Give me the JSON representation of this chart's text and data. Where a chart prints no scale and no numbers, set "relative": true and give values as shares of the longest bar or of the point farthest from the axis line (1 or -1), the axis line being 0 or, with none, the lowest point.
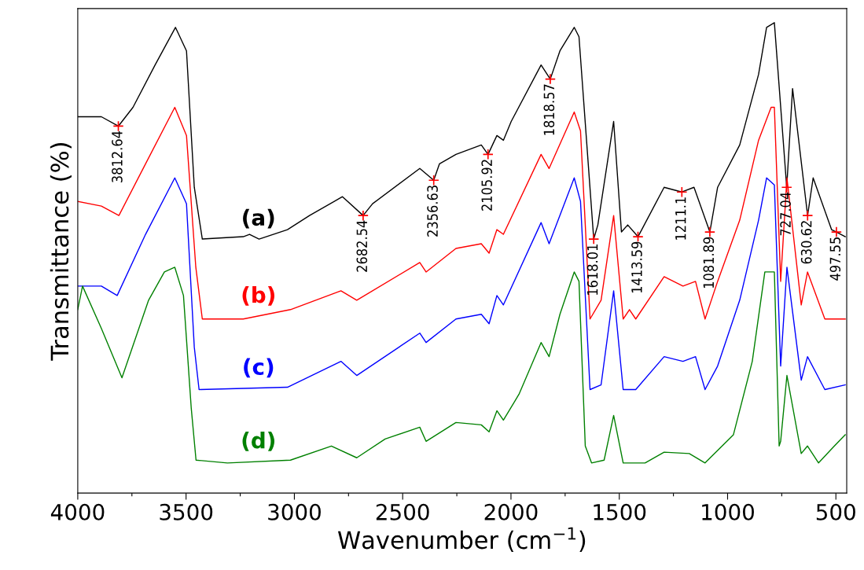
{
  "chart_data": {
    "type": "line",
    "relative": true,
    "xlabel": "Wavenumber (cm$^{−1}$)",
    "ylabel": "Transmittance (%)",
    "xlim": [
      4000,
      450
    ],
    "xticks": [
      4000,
      {
        "value": 3750,
        "label": null
      },
      3500,
      {
        "value": 3250,
        "label": null
      },
      3000,
      {
        "value": 2750,
        "label": null
      },
      2500,
      {
        "value": 2250,
        "label": null
      },
      2000,
      {
        "value": 1750,
        "label": null
      },
      1500,
      {
        "value": 1250,
        "label": null
      },
      1000,
      {
        "value": 750,
        "label": null
      },
      500
    ],
    "tick_labels": "x",
    "grid": false,
    "legend": false,
    "marker": "none",
    "line_style": "solid",
    "series": [
      {
        "name": "(a)",
        "color": "#000000",
        "x": [
          4000,
          3891,
          3812.64,
          3745,
          3643,
          3549,
          3498,
          3462,
          3425,
          3236,
          3207,
          3163,
          3032,
          2930,
          2778,
          2682.54,
          2639,
          2421,
          2356.63,
          2330,
          2254,
          2137,
          2105.92,
          2065,
          2035,
          1999,
          1861,
          1818.57,
          1774,
          1708,
          1686,
          1618.01,
          1599,
          1526,
          1490,
          1461,
          1413.59,
          1293,
          1211.1,
          1155,
          1081.89,
          1046,
          944,
          857,
          820,
          784,
          727.04,
          700,
          630.62,
          605,
          520,
          497.55,
          457
        ],
        "values": [
          0.8,
          0.8,
          0.78,
          0.82,
          0.91,
          0.99,
          0.94,
          0.65,
          0.54,
          0.545,
          0.55,
          0.54,
          0.56,
          0.59,
          0.63,
          0.59,
          0.615,
          0.69,
          0.665,
          0.7,
          0.72,
          0.74,
          0.72,
          0.76,
          0.75,
          0.79,
          0.91,
          0.88,
          0.94,
          0.99,
          0.97,
          0.54,
          0.57,
          0.79,
          0.555,
          0.57,
          0.545,
          0.65,
          0.64,
          0.65,
          0.555,
          0.65,
          0.74,
          0.89,
          0.99,
          1.0,
          0.65,
          0.86,
          0.59,
          0.67,
          0.56,
          0.555,
          0.545
        ]
      },
      {
        "name": "(b)",
        "color": "#ff0000",
        "x": [
          4000,
          3891,
          3810,
          3687,
          3552,
          3498,
          3455,
          3425,
          3236,
          3018,
          2785,
          2712,
          2421,
          2392,
          2254,
          2137,
          2101,
          2065,
          2035,
          1861,
          1824,
          1708,
          1679,
          1635,
          1584,
          1526,
          1482,
          1453,
          1424,
          1293,
          1206,
          1148,
          1104,
          1046,
          944,
          857,
          799,
          784,
          755,
          726,
          660,
          631,
          551,
          457
        ],
        "values": [
          0.62,
          0.61,
          0.59,
          0.7,
          0.82,
          0.76,
          0.48,
          0.37,
          0.37,
          0.39,
          0.43,
          0.41,
          0.49,
          0.47,
          0.52,
          0.53,
          0.51,
          0.56,
          0.55,
          0.72,
          0.69,
          0.81,
          0.77,
          0.37,
          0.41,
          0.59,
          0.37,
          0.39,
          0.37,
          0.46,
          0.44,
          0.45,
          0.37,
          0.45,
          0.58,
          0.75,
          0.82,
          0.82,
          0.45,
          0.67,
          0.4,
          0.47,
          0.37,
          0.37
        ]
      },
      {
        "name": "(c)",
        "color": "#0000ff",
        "x": [
          4000,
          3891,
          3818,
          3687,
          3552,
          3498,
          3462,
          3440,
          3032,
          2785,
          2712,
          2421,
          2392,
          2254,
          2137,
          2101,
          2065,
          2035,
          1861,
          1824,
          1708,
          1679,
          1635,
          1584,
          1526,
          1482,
          1424,
          1293,
          1206,
          1148,
          1104,
          1046,
          944,
          857,
          820,
          784,
          755,
          726,
          660,
          631,
          551,
          457
        ],
        "values": [
          0.44,
          0.44,
          0.42,
          0.55,
          0.67,
          0.615,
          0.31,
          0.22,
          0.225,
          0.28,
          0.25,
          0.34,
          0.32,
          0.37,
          0.38,
          0.36,
          0.42,
          0.4,
          0.575,
          0.53,
          0.67,
          0.62,
          0.22,
          0.23,
          0.43,
          0.22,
          0.22,
          0.29,
          0.28,
          0.29,
          0.22,
          0.27,
          0.41,
          0.58,
          0.67,
          0.655,
          0.27,
          0.48,
          0.24,
          0.29,
          0.22,
          0.23
        ]
      },
      {
        "name": "(d)",
        "color": "#008000",
        "x": [
          4000,
          3978,
          3891,
          3796,
          3673,
          3600,
          3552,
          3512,
          3476,
          3454,
          3309,
          3018,
          2829,
          2712,
          2581,
          2421,
          2392,
          2254,
          2137,
          2101,
          2065,
          2035,
          1963,
          1861,
          1824,
          1774,
          1708,
          1686,
          1657,
          1628,
          1570,
          1526,
          1482,
          1381,
          1293,
          1177,
          1104,
          973,
          886,
          828,
          784,
          762,
          755,
          726,
          660,
          631,
          580,
          507,
          457
        ],
        "values": [
          0.39,
          0.44,
          0.35,
          0.245,
          0.41,
          0.47,
          0.48,
          0.42,
          0.18,
          0.07,
          0.064,
          0.07,
          0.1,
          0.075,
          0.115,
          0.14,
          0.11,
          0.15,
          0.145,
          0.13,
          0.175,
          0.155,
          0.21,
          0.32,
          0.29,
          0.38,
          0.47,
          0.45,
          0.1,
          0.064,
          0.07,
          0.165,
          0.064,
          0.064,
          0.087,
          0.084,
          0.064,
          0.124,
          0.28,
          0.47,
          0.47,
          0.1,
          0.11,
          0.25,
          0.084,
          0.1,
          0.064,
          0.1,
          0.124
        ]
      }
    ],
    "annotations": [
      {
        "text": "3812.64",
        "x": 3812.64,
        "y": 0.78
      },
      {
        "text": "2682.54",
        "x": 2682.54,
        "y": 0.59
      },
      {
        "text": "2356.63",
        "x": 2356.63,
        "y": 0.665
      },
      {
        "text": "2105.92",
        "x": 2105.92,
        "y": 0.72
      },
      {
        "text": "1818.57",
        "x": 1818.57,
        "y": 0.88
      },
      {
        "text": "1618.01",
        "x": 1618.01,
        "y": 0.54
      },
      {
        "text": "1413.59",
        "x": 1413.59,
        "y": 0.545
      },
      {
        "text": "1211.1",
        "x": 1211.1,
        "y": 0.64
      },
      {
        "text": "1081.89",
        "x": 1081.89,
        "y": 0.555
      },
      {
        "text": "727.04",
        "x": 727.04,
        "y": 0.65
      },
      {
        "text": "630.62",
        "x": 630.62,
        "y": 0.59
      },
      {
        "text": "497.55",
        "x": 497.55,
        "y": 0.555
      }
    ]
  }
}
